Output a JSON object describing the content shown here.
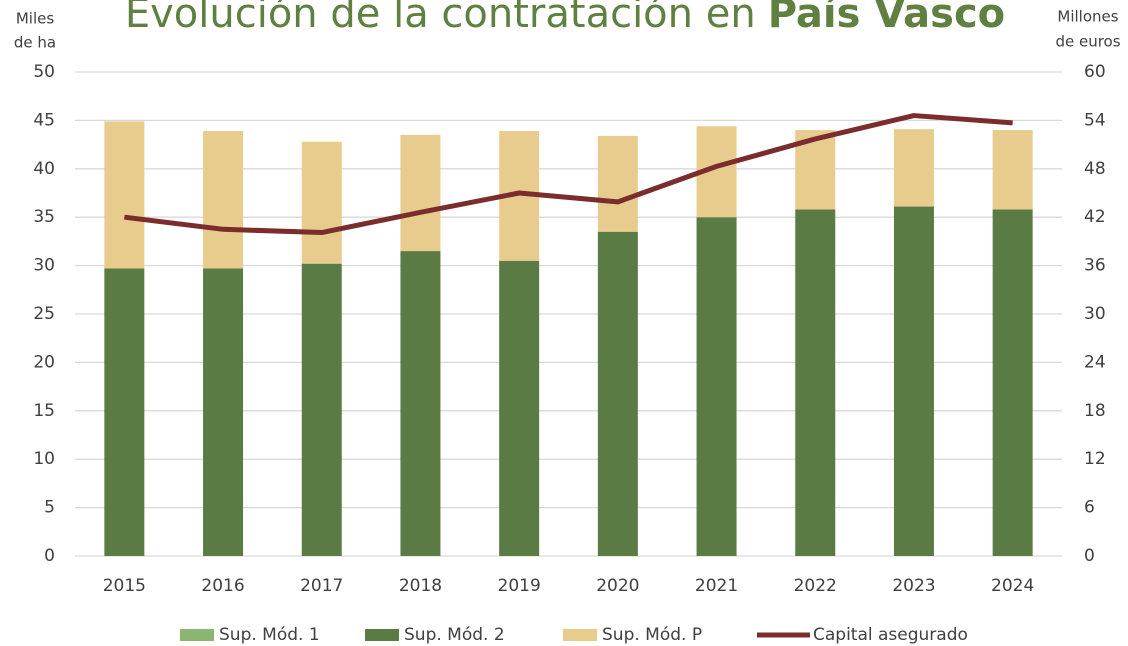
{
  "chart_data": {
    "type": "bar",
    "title": [
      "Evolución de la contratación en",
      "País Vasco"
    ],
    "ylabel": [
      "Miles",
      "de ha"
    ],
    "y2label": [
      "Millones",
      "de euros"
    ],
    "categories": [
      "2015",
      "2016",
      "2017",
      "2018",
      "2019",
      "2020",
      "2021",
      "2022",
      "2023",
      "2024"
    ],
    "stacked": true,
    "series": [
      {
        "name": "Sup. Mód. 1",
        "color": "#8db572",
        "values": [
          0,
          0,
          0,
          0,
          0,
          0,
          0,
          0,
          0,
          0
        ]
      },
      {
        "name": "Sup. Mód. 2",
        "color": "#5a7b44",
        "values": [
          29.7,
          29.7,
          30.2,
          31.5,
          30.5,
          33.5,
          35,
          35.8,
          36.1,
          35.8
        ]
      },
      {
        "name": "Sup. Mód. P",
        "color": "#e8cc8e",
        "values": [
          15.2,
          14.2,
          12.6,
          12.0,
          13.4,
          9.9,
          9.4,
          8.2,
          8.0,
          8.2
        ]
      },
      {
        "name": "Capital asegurado",
        "color": "#7b2d2d",
        "type": "line",
        "axis": "y2",
        "values": [
          42.0,
          40.5,
          40.1,
          42.6,
          45.0,
          43.9,
          48.3,
          51.7,
          54.6,
          53.7
        ]
      }
    ],
    "ylim": [
      0,
      50
    ],
    "yticks": [
      0,
      5,
      10,
      15,
      20,
      25,
      30,
      35,
      40,
      45,
      50
    ],
    "y2lim": [
      0,
      60
    ],
    "y2ticks": [
      0,
      6,
      12,
      18,
      24,
      30,
      36,
      42,
      48,
      54,
      60
    ],
    "grid": true,
    "legend": "bottom"
  }
}
